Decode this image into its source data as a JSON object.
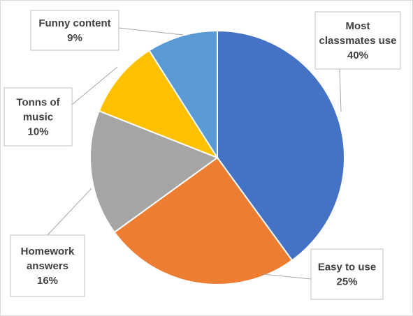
{
  "chart_data": {
    "type": "pie",
    "title": "",
    "start_angle_deg": 0,
    "direction": "clockwise",
    "slices": [
      {
        "label_lines": [
          "Most",
          "classmates use"
        ],
        "value": 40,
        "value_label": "40%",
        "color": "#4472c4"
      },
      {
        "label_lines": [
          "Easy to use"
        ],
        "value": 25,
        "value_label": "25%",
        "color": "#ed7d31"
      },
      {
        "label_lines": [
          "Homework",
          "answers"
        ],
        "value": 16,
        "value_label": "16%",
        "color": "#a5a5a5"
      },
      {
        "label_lines": [
          "Tonns of",
          "music"
        ],
        "value": 10,
        "value_label": "10%",
        "color": "#ffc000"
      },
      {
        "label_lines": [
          "Funny content"
        ],
        "value": 9,
        "value_label": "9%",
        "color": "#5b9bd5"
      }
    ],
    "legend": "none",
    "data_labels": "outside-with-leader-lines"
  }
}
